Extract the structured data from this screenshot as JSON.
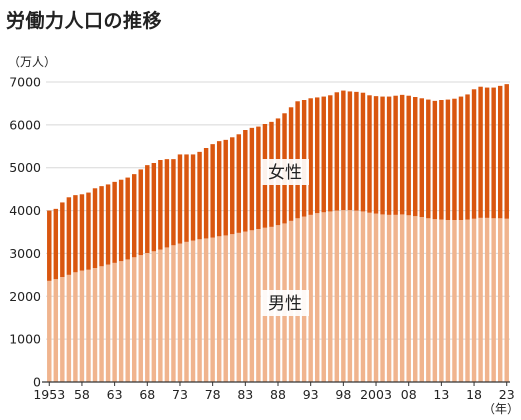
{
  "chart_data": {
    "type": "bar",
    "stacked": true,
    "title": "労働力人口の推移",
    "ylabel": "（万人）",
    "xlabel": "（年）",
    "ylim": [
      0,
      7000
    ],
    "yticks": [
      0,
      1000,
      2000,
      3000,
      4000,
      5000,
      6000,
      7000
    ],
    "x_tick_labels": [
      "1953",
      "58",
      "63",
      "68",
      "73",
      "78",
      "83",
      "88",
      "93",
      "98",
      "2003",
      "08",
      "13",
      "18",
      "23"
    ],
    "x_tick_years": [
      1953,
      1958,
      1963,
      1968,
      1973,
      1978,
      1983,
      1988,
      1993,
      1998,
      2003,
      2008,
      2013,
      2018,
      2023
    ],
    "grid": true,
    "colors": {
      "男性": "#f0b48e",
      "女性": "#d9560f",
      "grid": "#d8d8d8",
      "axis": "#333333"
    },
    "categories": [
      1953,
      1954,
      1955,
      1956,
      1957,
      1958,
      1959,
      1960,
      1961,
      1962,
      1963,
      1964,
      1965,
      1966,
      1967,
      1968,
      1969,
      1970,
      1971,
      1972,
      1973,
      1974,
      1975,
      1976,
      1977,
      1978,
      1979,
      1980,
      1981,
      1982,
      1983,
      1984,
      1985,
      1986,
      1987,
      1988,
      1989,
      1990,
      1991,
      1992,
      1993,
      1994,
      1995,
      1996,
      1997,
      1998,
      1999,
      2000,
      2001,
      2002,
      2003,
      2004,
      2005,
      2006,
      2007,
      2008,
      2009,
      2010,
      2011,
      2012,
      2013,
      2014,
      2015,
      2016,
      2017,
      2018,
      2019,
      2020,
      2021,
      2022,
      2023
    ],
    "series": [
      {
        "name": "男性",
        "values": [
          2360,
          2400,
          2450,
          2500,
          2560,
          2600,
          2620,
          2660,
          2700,
          2740,
          2780,
          2820,
          2860,
          2910,
          2960,
          3010,
          3050,
          3090,
          3140,
          3190,
          3230,
          3270,
          3300,
          3330,
          3350,
          3370,
          3400,
          3420,
          3450,
          3480,
          3510,
          3540,
          3570,
          3600,
          3620,
          3660,
          3700,
          3760,
          3820,
          3860,
          3900,
          3940,
          3960,
          3980,
          4000,
          4010,
          4010,
          4000,
          3980,
          3950,
          3930,
          3910,
          3900,
          3900,
          3910,
          3890,
          3870,
          3850,
          3820,
          3800,
          3790,
          3780,
          3780,
          3780,
          3790,
          3810,
          3830,
          3830,
          3820,
          3820,
          3810
        ]
      },
      {
        "name": "女性",
        "values": [
          1640,
          1640,
          1740,
          1810,
          1800,
          1780,
          1800,
          1860,
          1870,
          1870,
          1890,
          1900,
          1910,
          1940,
          2000,
          2050,
          2060,
          2090,
          2060,
          2010,
          2080,
          2040,
          2010,
          2040,
          2110,
          2180,
          2220,
          2230,
          2260,
          2300,
          2370,
          2390,
          2390,
          2420,
          2450,
          2490,
          2570,
          2650,
          2730,
          2720,
          2720,
          2700,
          2700,
          2710,
          2760,
          2790,
          2770,
          2770,
          2770,
          2740,
          2740,
          2750,
          2760,
          2780,
          2790,
          2790,
          2780,
          2770,
          2770,
          2760,
          2790,
          2810,
          2830,
          2880,
          2920,
          3020,
          3060,
          3040,
          3050,
          3090,
          3140
        ]
      }
    ],
    "series_label_positions": [
      {
        "name": "男性",
        "label": "男性"
      },
      {
        "name": "女性",
        "label": "女性"
      }
    ]
  }
}
